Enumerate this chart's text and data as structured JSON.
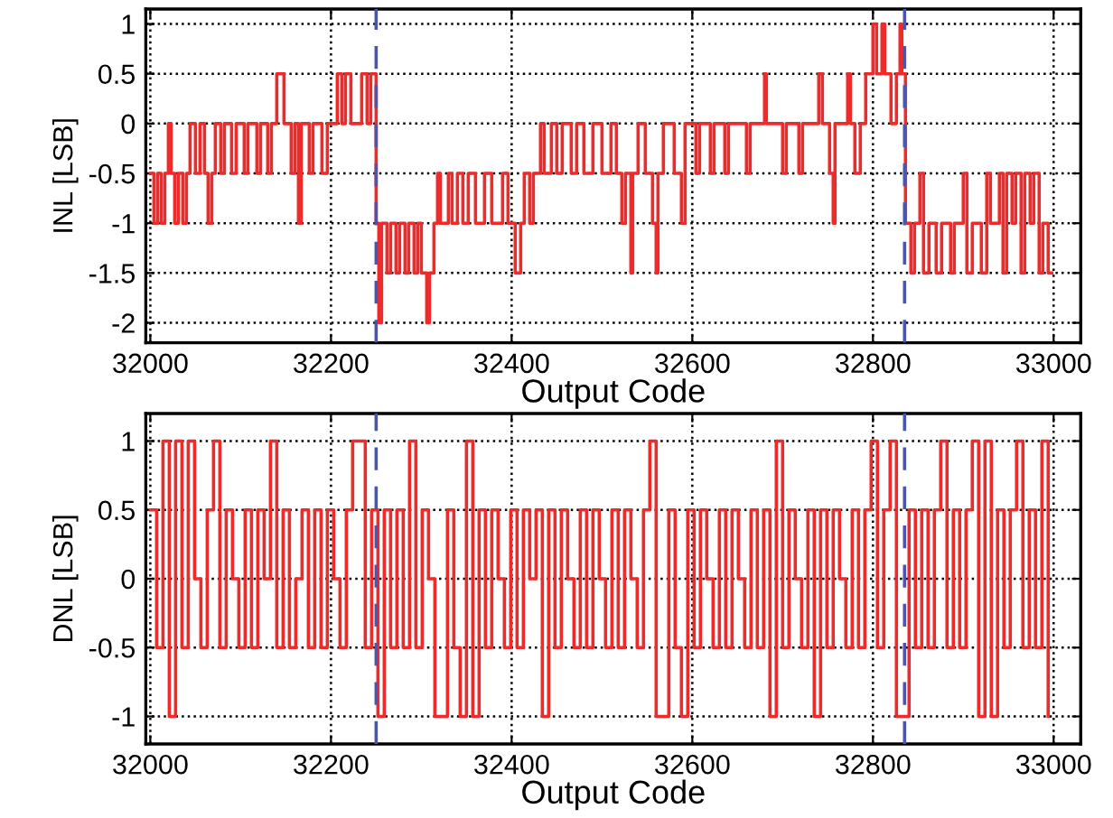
{
  "chart_data": [
    {
      "type": "step",
      "xlabel": "Output Code",
      "ylabel": "INL [LSB]",
      "xlim": [
        31995,
        33030
      ],
      "ylim": [
        -2.2,
        1.15
      ],
      "xticks": [
        32000,
        32200,
        32400,
        32600,
        32800,
        33000
      ],
      "yticks": [
        -2,
        -1.5,
        -1,
        -0.5,
        0,
        0.5,
        1
      ],
      "grid": true,
      "line_style": "solid",
      "ref_lines": [
        {
          "axis": "x",
          "value": 32250,
          "color": "#4a55b0",
          "line_style": "dashed"
        },
        {
          "axis": "x",
          "value": 32835,
          "color": "#4a55b0",
          "line_style": "dashed"
        }
      ],
      "series": [
        {
          "color": "#ee2a2a",
          "x": [
            32000,
            32004,
            32008,
            32012,
            32016,
            32020,
            32023,
            32027,
            32031,
            32036,
            32040,
            32044,
            32050,
            32055,
            32060,
            32064,
            32068,
            32072,
            32078,
            32082,
            32090,
            32095,
            32104,
            32108,
            32118,
            32122,
            32130,
            32134,
            32140,
            32148,
            32156,
            32160,
            32164,
            32167,
            32176,
            32180,
            32190,
            32196,
            32207,
            32212,
            32216,
            32222,
            32234,
            32240,
            32244,
            32250,
            32253,
            32256,
            32262,
            32266,
            32272,
            32276,
            32282,
            32286,
            32292,
            32296,
            32300,
            32306,
            32309,
            32314,
            32318,
            32321,
            32330,
            32334,
            32340,
            32346,
            32352,
            32360,
            32370,
            32378,
            32390,
            32396,
            32404,
            32410,
            32414,
            32420,
            32424,
            32432,
            32436,
            32444,
            32450,
            32456,
            32466,
            32472,
            32480,
            32490,
            32500,
            32510,
            32516,
            32522,
            32526,
            32532,
            32534,
            32540,
            32548,
            32556,
            32560,
            32562,
            32568,
            32580,
            32588,
            32592,
            32604,
            32608,
            32620,
            32624,
            32636,
            32640,
            32660,
            32664,
            32680,
            32682,
            32700,
            32704,
            32718,
            32722,
            32740,
            32744,
            32752,
            32756,
            32758,
            32772,
            32775,
            32780,
            32786,
            32792,
            32800,
            32804,
            32810,
            32813,
            32820,
            32826,
            32830,
            32832,
            32836,
            32842,
            32846,
            32852,
            32856,
            32862,
            32870,
            32876,
            32886,
            32890,
            32900,
            32904,
            32910,
            32920,
            32926,
            32930,
            32940,
            32944,
            32948,
            32954,
            32958,
            32964,
            32968,
            32974,
            32978,
            32984,
            32988,
            32994,
            32998
          ],
          "values": [
            -0.5,
            -1,
            -0.5,
            -1,
            -0.5,
            0,
            -0.5,
            -1,
            -0.5,
            -1,
            -0.5,
            0,
            -0.5,
            0,
            -0.5,
            -1,
            -0.5,
            0,
            -0.5,
            0,
            -0.5,
            0,
            -0.5,
            0,
            -0.5,
            0,
            -0.5,
            0,
            0.5,
            0,
            -0.5,
            0,
            -1,
            0,
            -0.5,
            0,
            -0.5,
            0,
            0.5,
            0,
            0.5,
            0,
            0.5,
            0,
            0.5,
            -1,
            -2,
            -1,
            -1.5,
            -1,
            -1.5,
            -1,
            -1.5,
            -1,
            -1.5,
            -1,
            -1.5,
            -2,
            -1.5,
            -1,
            -0.5,
            -1,
            -0.5,
            -1,
            -0.5,
            -1,
            -0.5,
            -1,
            -0.5,
            -1,
            -0.5,
            -1,
            -1.5,
            -1,
            -0.5,
            -1,
            -0.5,
            0,
            -0.5,
            0,
            -0.5,
            0,
            -0.5,
            0,
            -0.5,
            0,
            -0.5,
            0,
            -0.5,
            -1,
            -0.5,
            -1.5,
            -0.5,
            0,
            -0.5,
            -1,
            -1.5,
            -0.5,
            0,
            -0.5,
            -1,
            0,
            -0.5,
            0,
            -0.5,
            0,
            -0.5,
            0,
            -0.5,
            0,
            0.5,
            0,
            -0.5,
            0,
            -0.5,
            0,
            0.5,
            0,
            -0.5,
            -1,
            0,
            0.5,
            0,
            -0.5,
            0,
            0.5,
            1,
            0.5,
            1,
            0.5,
            0,
            0.5,
            1,
            0.5,
            -1,
            -1.5,
            -1,
            -0.5,
            -1.5,
            -1,
            -1.5,
            -1,
            -1.5,
            -1,
            -0.5,
            -1.5,
            -1,
            -1.5,
            -0.5,
            -1,
            -0.5,
            -1.5,
            -0.5,
            -1,
            -0.5,
            -1.5,
            -0.5,
            -1,
            -0.5,
            -1.5,
            -1,
            -1.5,
            -1.5
          ]
        }
      ]
    },
    {
      "type": "step",
      "xlabel": "Output Code",
      "ylabel": "DNL [LSB]",
      "xlim": [
        31995,
        33030
      ],
      "ylim": [
        -1.2,
        1.2
      ],
      "xticks": [
        32000,
        32200,
        32400,
        32600,
        32800,
        33000
      ],
      "yticks": [
        -1,
        -0.5,
        0,
        0.5,
        1
      ],
      "grid": true,
      "line_style": "solid",
      "ref_lines": [
        {
          "axis": "x",
          "value": 32250,
          "color": "#4a55b0",
          "line_style": "dashed"
        },
        {
          "axis": "x",
          "value": 32835,
          "color": "#4a55b0",
          "line_style": "dashed"
        }
      ],
      "series": [
        {
          "color": "#ee2a2a",
          "x": [
            32000,
            32007,
            32014,
            32021,
            32028,
            32035,
            32042,
            32049,
            32056,
            32063,
            32070,
            32077,
            32084,
            32091,
            32098,
            32105,
            32112,
            32119,
            32126,
            32133,
            32140,
            32147,
            32154,
            32161,
            32168,
            32175,
            32182,
            32189,
            32196,
            32203,
            32210,
            32217,
            32224,
            32231,
            32238,
            32245,
            32252,
            32259,
            32266,
            32273,
            32280,
            32287,
            32294,
            32301,
            32308,
            32315,
            32322,
            32329,
            32336,
            32343,
            32350,
            32357,
            32364,
            32371,
            32378,
            32385,
            32392,
            32399,
            32406,
            32413,
            32420,
            32427,
            32434,
            32441,
            32448,
            32455,
            32462,
            32469,
            32476,
            32483,
            32490,
            32497,
            32504,
            32511,
            32518,
            32525,
            32532,
            32539,
            32546,
            32553,
            32560,
            32567,
            32574,
            32581,
            32588,
            32595,
            32602,
            32609,
            32616,
            32623,
            32630,
            32637,
            32644,
            32651,
            32658,
            32665,
            32672,
            32679,
            32686,
            32693,
            32700,
            32707,
            32714,
            32721,
            32728,
            32735,
            32742,
            32749,
            32756,
            32763,
            32770,
            32777,
            32784,
            32791,
            32798,
            32805,
            32812,
            32819,
            32826,
            32833,
            32840,
            32847,
            32854,
            32861,
            32868,
            32875,
            32882,
            32889,
            32896,
            32903,
            32910,
            32917,
            32924,
            32931,
            32938,
            32945,
            32952,
            32959,
            32966,
            32973,
            32980,
            32987,
            32994
          ],
          "values": [
            0.5,
            -0.5,
            1,
            -1,
            1,
            -0.5,
            1,
            0,
            -0.5,
            0.5,
            1,
            -0.5,
            0.5,
            0,
            -0.5,
            0.5,
            -0.5,
            0.5,
            0,
            1,
            -0.5,
            0.5,
            -0.5,
            0,
            0.5,
            -0.5,
            0.5,
            -0.5,
            0.5,
            0,
            -0.5,
            0.5,
            1,
            1,
            -0.5,
            0.5,
            -1,
            0.5,
            -0.5,
            0.5,
            -0.5,
            1,
            -0.5,
            0.5,
            0,
            -1,
            -1,
            0.5,
            -0.5,
            -1,
            1,
            -1,
            0.5,
            -0.5,
            0.5,
            0,
            -0.5,
            0.5,
            -0.5,
            0.5,
            0,
            0.5,
            -1,
            0.5,
            -0.5,
            0.5,
            0,
            -0.5,
            0.5,
            -0.5,
            0.5,
            0,
            -0.5,
            0.5,
            -0.5,
            0.5,
            0,
            -0.5,
            0.5,
            1,
            -1,
            -1,
            0.5,
            -0.5,
            -1,
            0.5,
            -0.5,
            0.5,
            0,
            -0.5,
            0.5,
            -0.5,
            0.5,
            0,
            -0.5,
            0.5,
            -0.5,
            0.5,
            -1,
            1,
            -0.5,
            0.5,
            0,
            -0.5,
            0.5,
            -1,
            0.5,
            -0.5,
            0.5,
            0,
            -0.5,
            0.5,
            -0.5,
            0.5,
            1,
            -0.5,
            0.5,
            1,
            -1,
            -1,
            0.5,
            -0.5,
            0.5,
            -0.5,
            0.5,
            1,
            -0.5,
            0.5,
            -0.5,
            0.5,
            1,
            -1,
            1,
            -1,
            0.5,
            -0.5,
            0.5,
            1,
            -0.5,
            0.5,
            -0.5,
            1,
            -1
          ]
        }
      ]
    }
  ]
}
